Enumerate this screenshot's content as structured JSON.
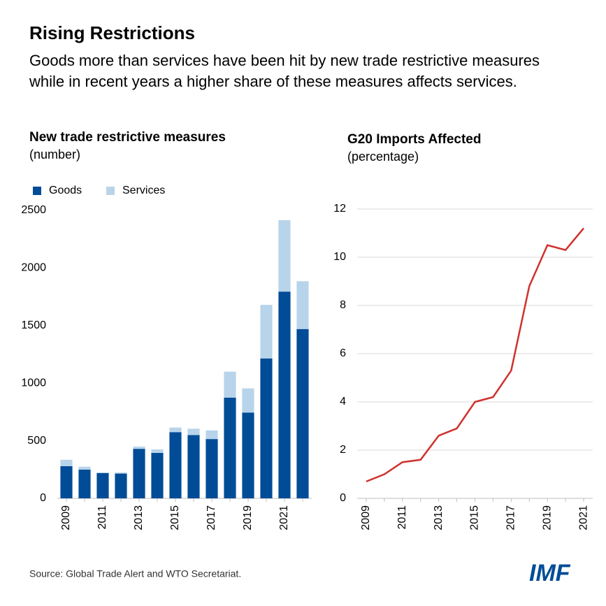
{
  "title": "Rising Restrictions",
  "subtitle": "Goods more than services have been hit by new trade restrictive measures while in recent years a higher share of these measures affects services.",
  "source": "Source: Global Trade Alert and WTO Secretariat.",
  "logo": "IMF",
  "chart_data": [
    {
      "type": "bar",
      "stacked": true,
      "title": "New trade restrictive measures",
      "subtitle": "(number)",
      "categories": [
        "2009",
        null,
        "2011",
        null,
        "2013",
        null,
        "2015",
        null,
        "2017",
        null,
        "2019",
        null,
        "2021",
        null
      ],
      "series": [
        {
          "name": "Goods",
          "color": "#004c97",
          "values": [
            280,
            250,
            220,
            215,
            430,
            395,
            575,
            550,
            515,
            875,
            745,
            1215,
            1795,
            1470
          ]
        },
        {
          "name": "Services",
          "color": "#b8d4ea",
          "values": [
            55,
            25,
            5,
            10,
            20,
            30,
            40,
            55,
            75,
            225,
            210,
            465,
            620,
            415
          ]
        }
      ],
      "ylim": [
        0,
        2500
      ],
      "yticks": [
        0,
        500,
        1000,
        1500,
        2000,
        2500
      ],
      "grid": false,
      "legend": "top-left"
    },
    {
      "type": "line",
      "title": "G20 Imports Affected",
      "subtitle": "(percentage)",
      "categories": [
        "2009",
        null,
        "2011",
        null,
        "2013",
        null,
        "2015",
        null,
        "2017",
        null,
        "2019",
        null,
        "2021"
      ],
      "values": [
        0.7,
        1.0,
        1.5,
        1.6,
        2.6,
        2.9,
        4.0,
        4.2,
        5.3,
        8.8,
        10.5,
        10.3,
        11.2
      ],
      "color": "#d0312d",
      "ylim": [
        0,
        12
      ],
      "yticks": [
        0,
        2,
        4,
        6,
        8,
        10,
        12
      ],
      "grid": true
    }
  ]
}
